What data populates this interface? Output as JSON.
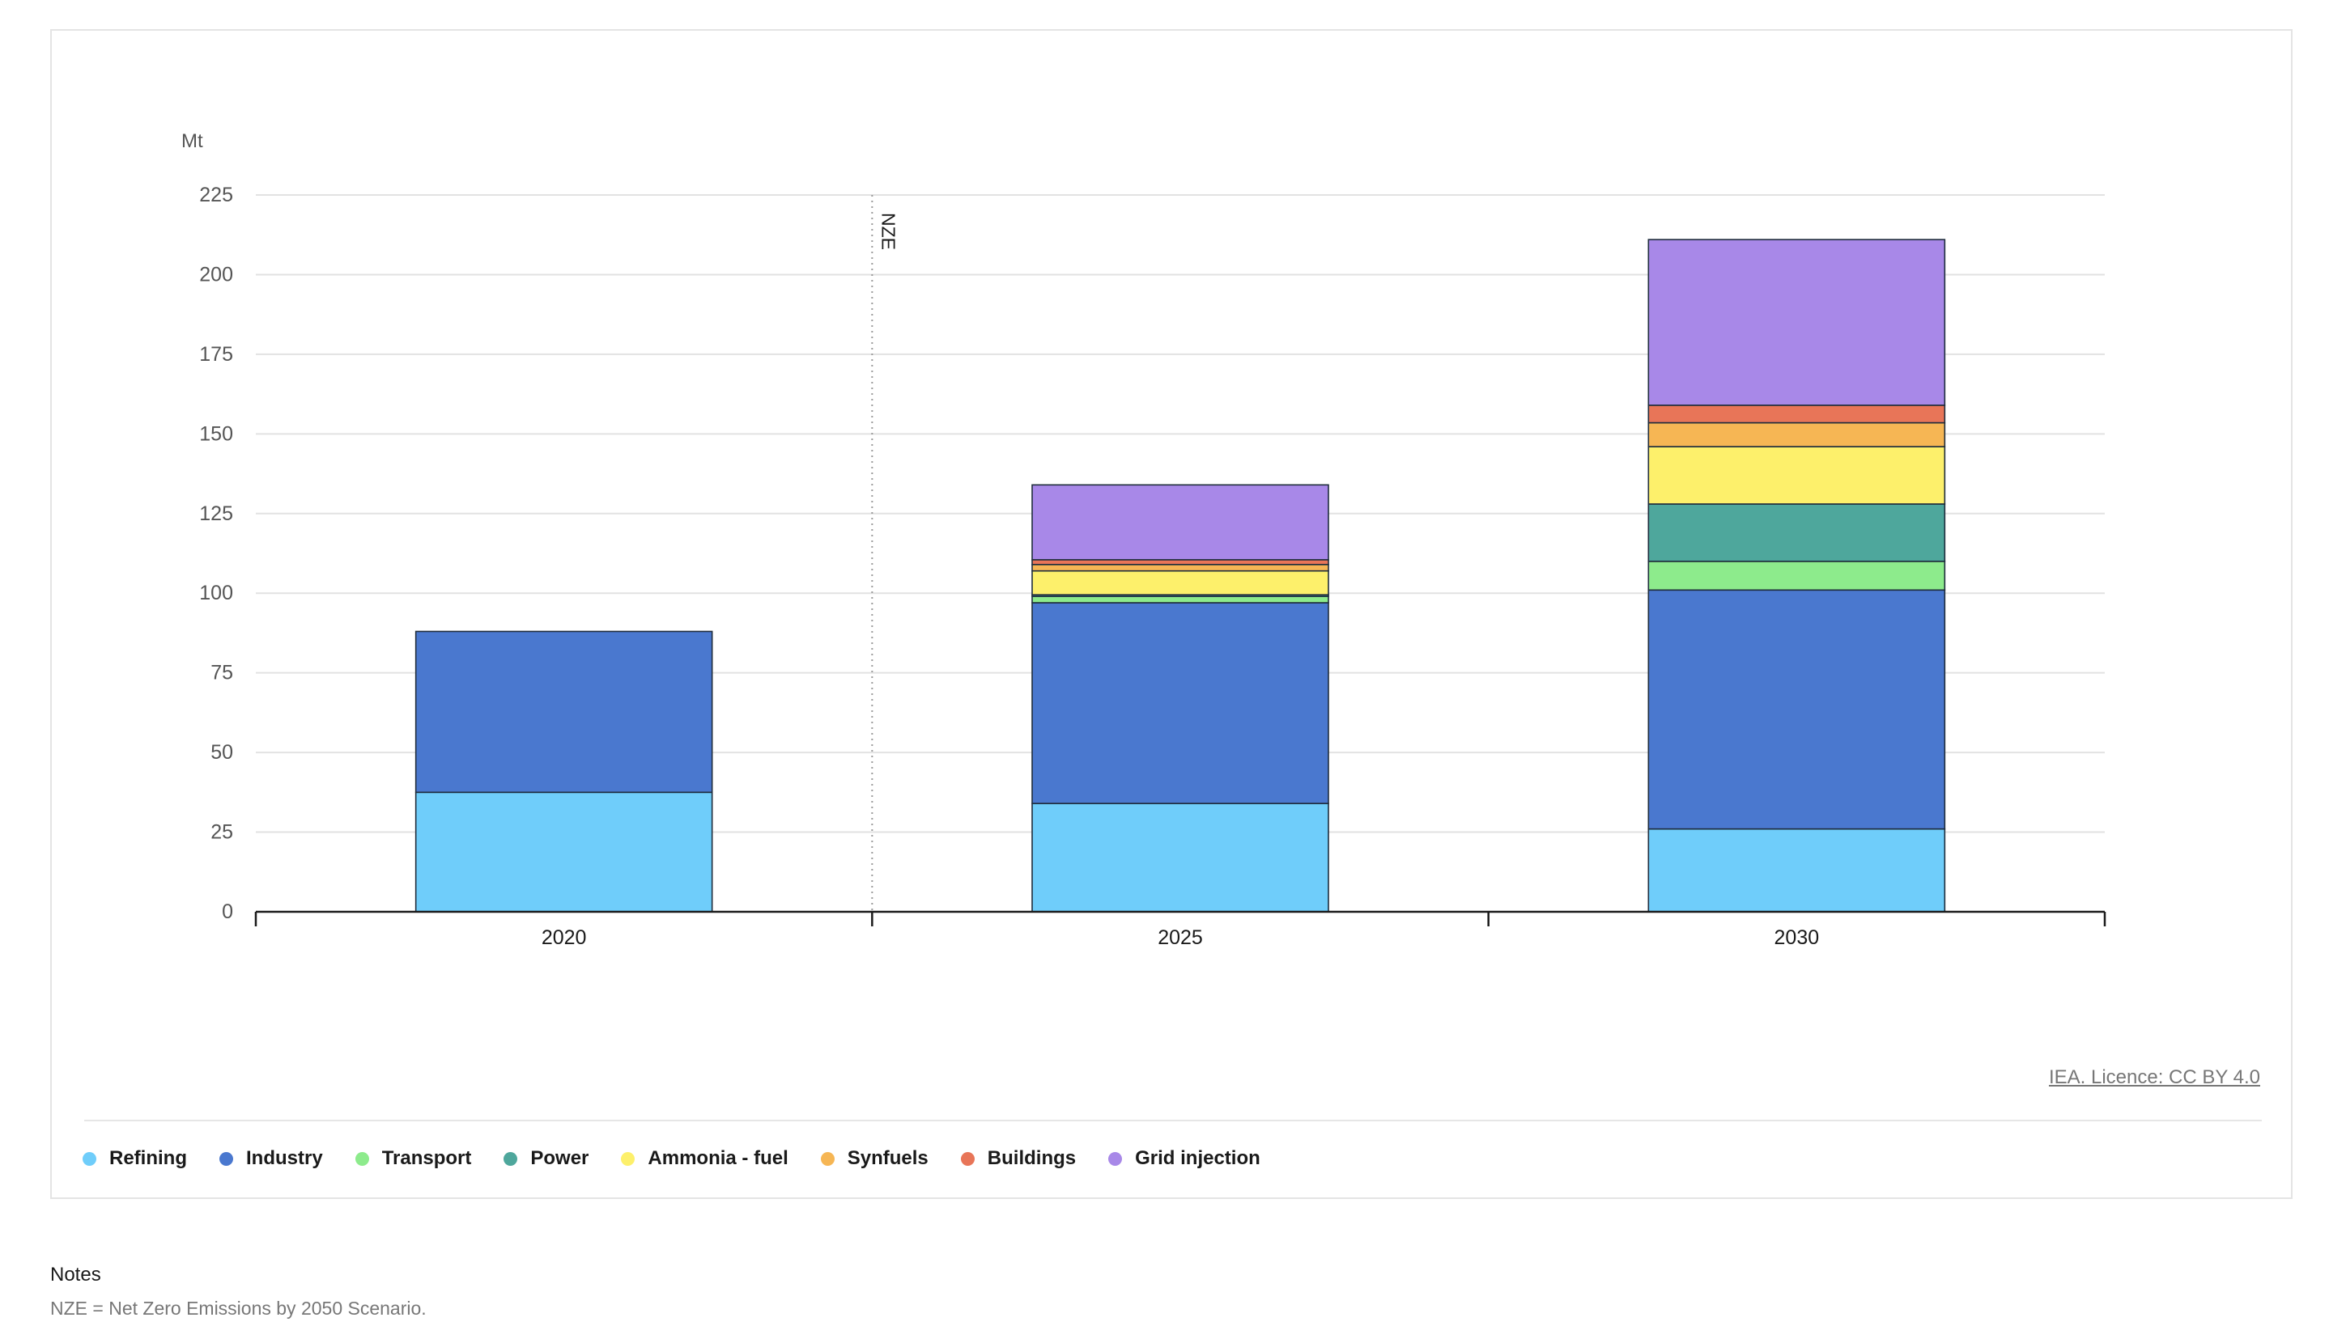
{
  "chart_data": {
    "type": "bar",
    "stacked": true,
    "ylabel": "Mt",
    "ylim": [
      0,
      225
    ],
    "yticks": [
      0,
      25,
      50,
      75,
      100,
      125,
      150,
      175,
      200,
      225
    ],
    "categories": [
      "2020",
      "2025",
      "2030"
    ],
    "grid": true,
    "legend_position": "bottom",
    "annotation": {
      "text": "NZE",
      "position": "between 2020 and 2025"
    },
    "series": [
      {
        "name": "Refining",
        "color": "#6fcdfa",
        "values": [
          37.5,
          34,
          26
        ]
      },
      {
        "name": "Industry",
        "color": "#4a78cf",
        "values": [
          50.5,
          63,
          75
        ]
      },
      {
        "name": "Transport",
        "color": "#8deb8c",
        "values": [
          0,
          2,
          9
        ]
      },
      {
        "name": "Power",
        "color": "#4ea79c",
        "values": [
          0,
          0.5,
          18
        ]
      },
      {
        "name": "Ammonia - fuel",
        "color": "#fdf06b",
        "values": [
          0,
          7.5,
          18
        ]
      },
      {
        "name": "Synfuels",
        "color": "#f6b654",
        "values": [
          0,
          2,
          7.5
        ]
      },
      {
        "name": "Buildings",
        "color": "#e87558",
        "values": [
          0,
          1.5,
          5.5
        ]
      },
      {
        "name": "Grid injection",
        "color": "#a888e8",
        "values": [
          0,
          23.5,
          52
        ]
      }
    ]
  },
  "source": {
    "licence_text": "IEA. Licence: CC BY 4.0"
  },
  "notes": {
    "title": "Notes",
    "text": "NZE = Net Zero Emissions by 2050 Scenario."
  }
}
